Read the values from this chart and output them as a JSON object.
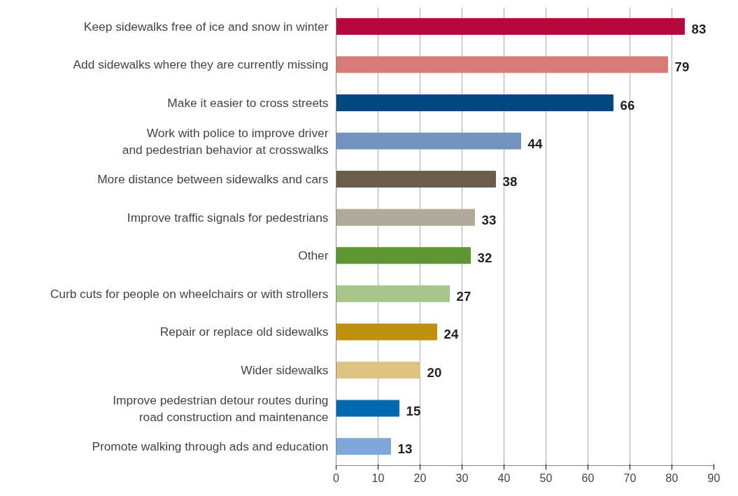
{
  "chart_data": {
    "type": "bar",
    "orientation": "horizontal",
    "categories": [
      "Keep sidewalks free of ice and snow in winter",
      "Add sidewalks where they are currently missing",
      "Make it easier to cross streets",
      "Work with police to improve driver and pedestrian behavior at crosswalks",
      "More distance between sidewalks and cars",
      "Improve traffic signals for pedestrians",
      "Other",
      "Curb cuts for people on wheelchairs or with strollers",
      "Repair or replace old sidewalks",
      "Wider sidewalks",
      "Improve pedestrian detour routes during road construction and maintenance",
      "Promote walking through ads and education"
    ],
    "values": [
      83,
      79,
      66,
      44,
      38,
      33,
      32,
      27,
      24,
      20,
      15,
      13
    ],
    "colors": [
      "#b5093b",
      "#d67b7a",
      "#00467f",
      "#7393bf",
      "#6a5d4a",
      "#b1a99a",
      "#5e9732",
      "#a6c68a",
      "#bf900c",
      "#e0c282",
      "#0067b1",
      "#7fa6d9"
    ],
    "xlim": [
      0,
      90
    ],
    "xticks": [
      0,
      10,
      20,
      30,
      40,
      50,
      60,
      70,
      80,
      90
    ],
    "grid": "x",
    "data_labels": true
  }
}
